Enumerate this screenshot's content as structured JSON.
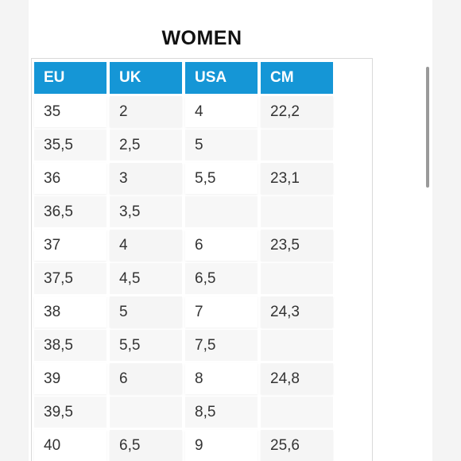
{
  "title": "WOMEN",
  "columns": [
    "EU",
    "UK",
    "USA",
    "CM"
  ],
  "rows": [
    [
      "35",
      "2",
      "4",
      "22,2"
    ],
    [
      "35,5",
      "2,5",
      "5",
      ""
    ],
    [
      "36",
      "3",
      "5,5",
      "23,1"
    ],
    [
      "36,5",
      "3,5",
      "",
      ""
    ],
    [
      "37",
      "4",
      "6",
      "23,5"
    ],
    [
      "37,5",
      "4,5",
      "6,5",
      ""
    ],
    [
      "38",
      "5",
      "7",
      "24,3"
    ],
    [
      "38,5",
      "5,5",
      "7,5",
      ""
    ],
    [
      "39",
      "6",
      "8",
      "24,8"
    ],
    [
      "39,5",
      "",
      "8,5",
      ""
    ],
    [
      "40",
      "6,5",
      "9",
      "25,6"
    ]
  ],
  "colors": {
    "header_bg": "#1596d6",
    "header_text": "#ffffff"
  }
}
